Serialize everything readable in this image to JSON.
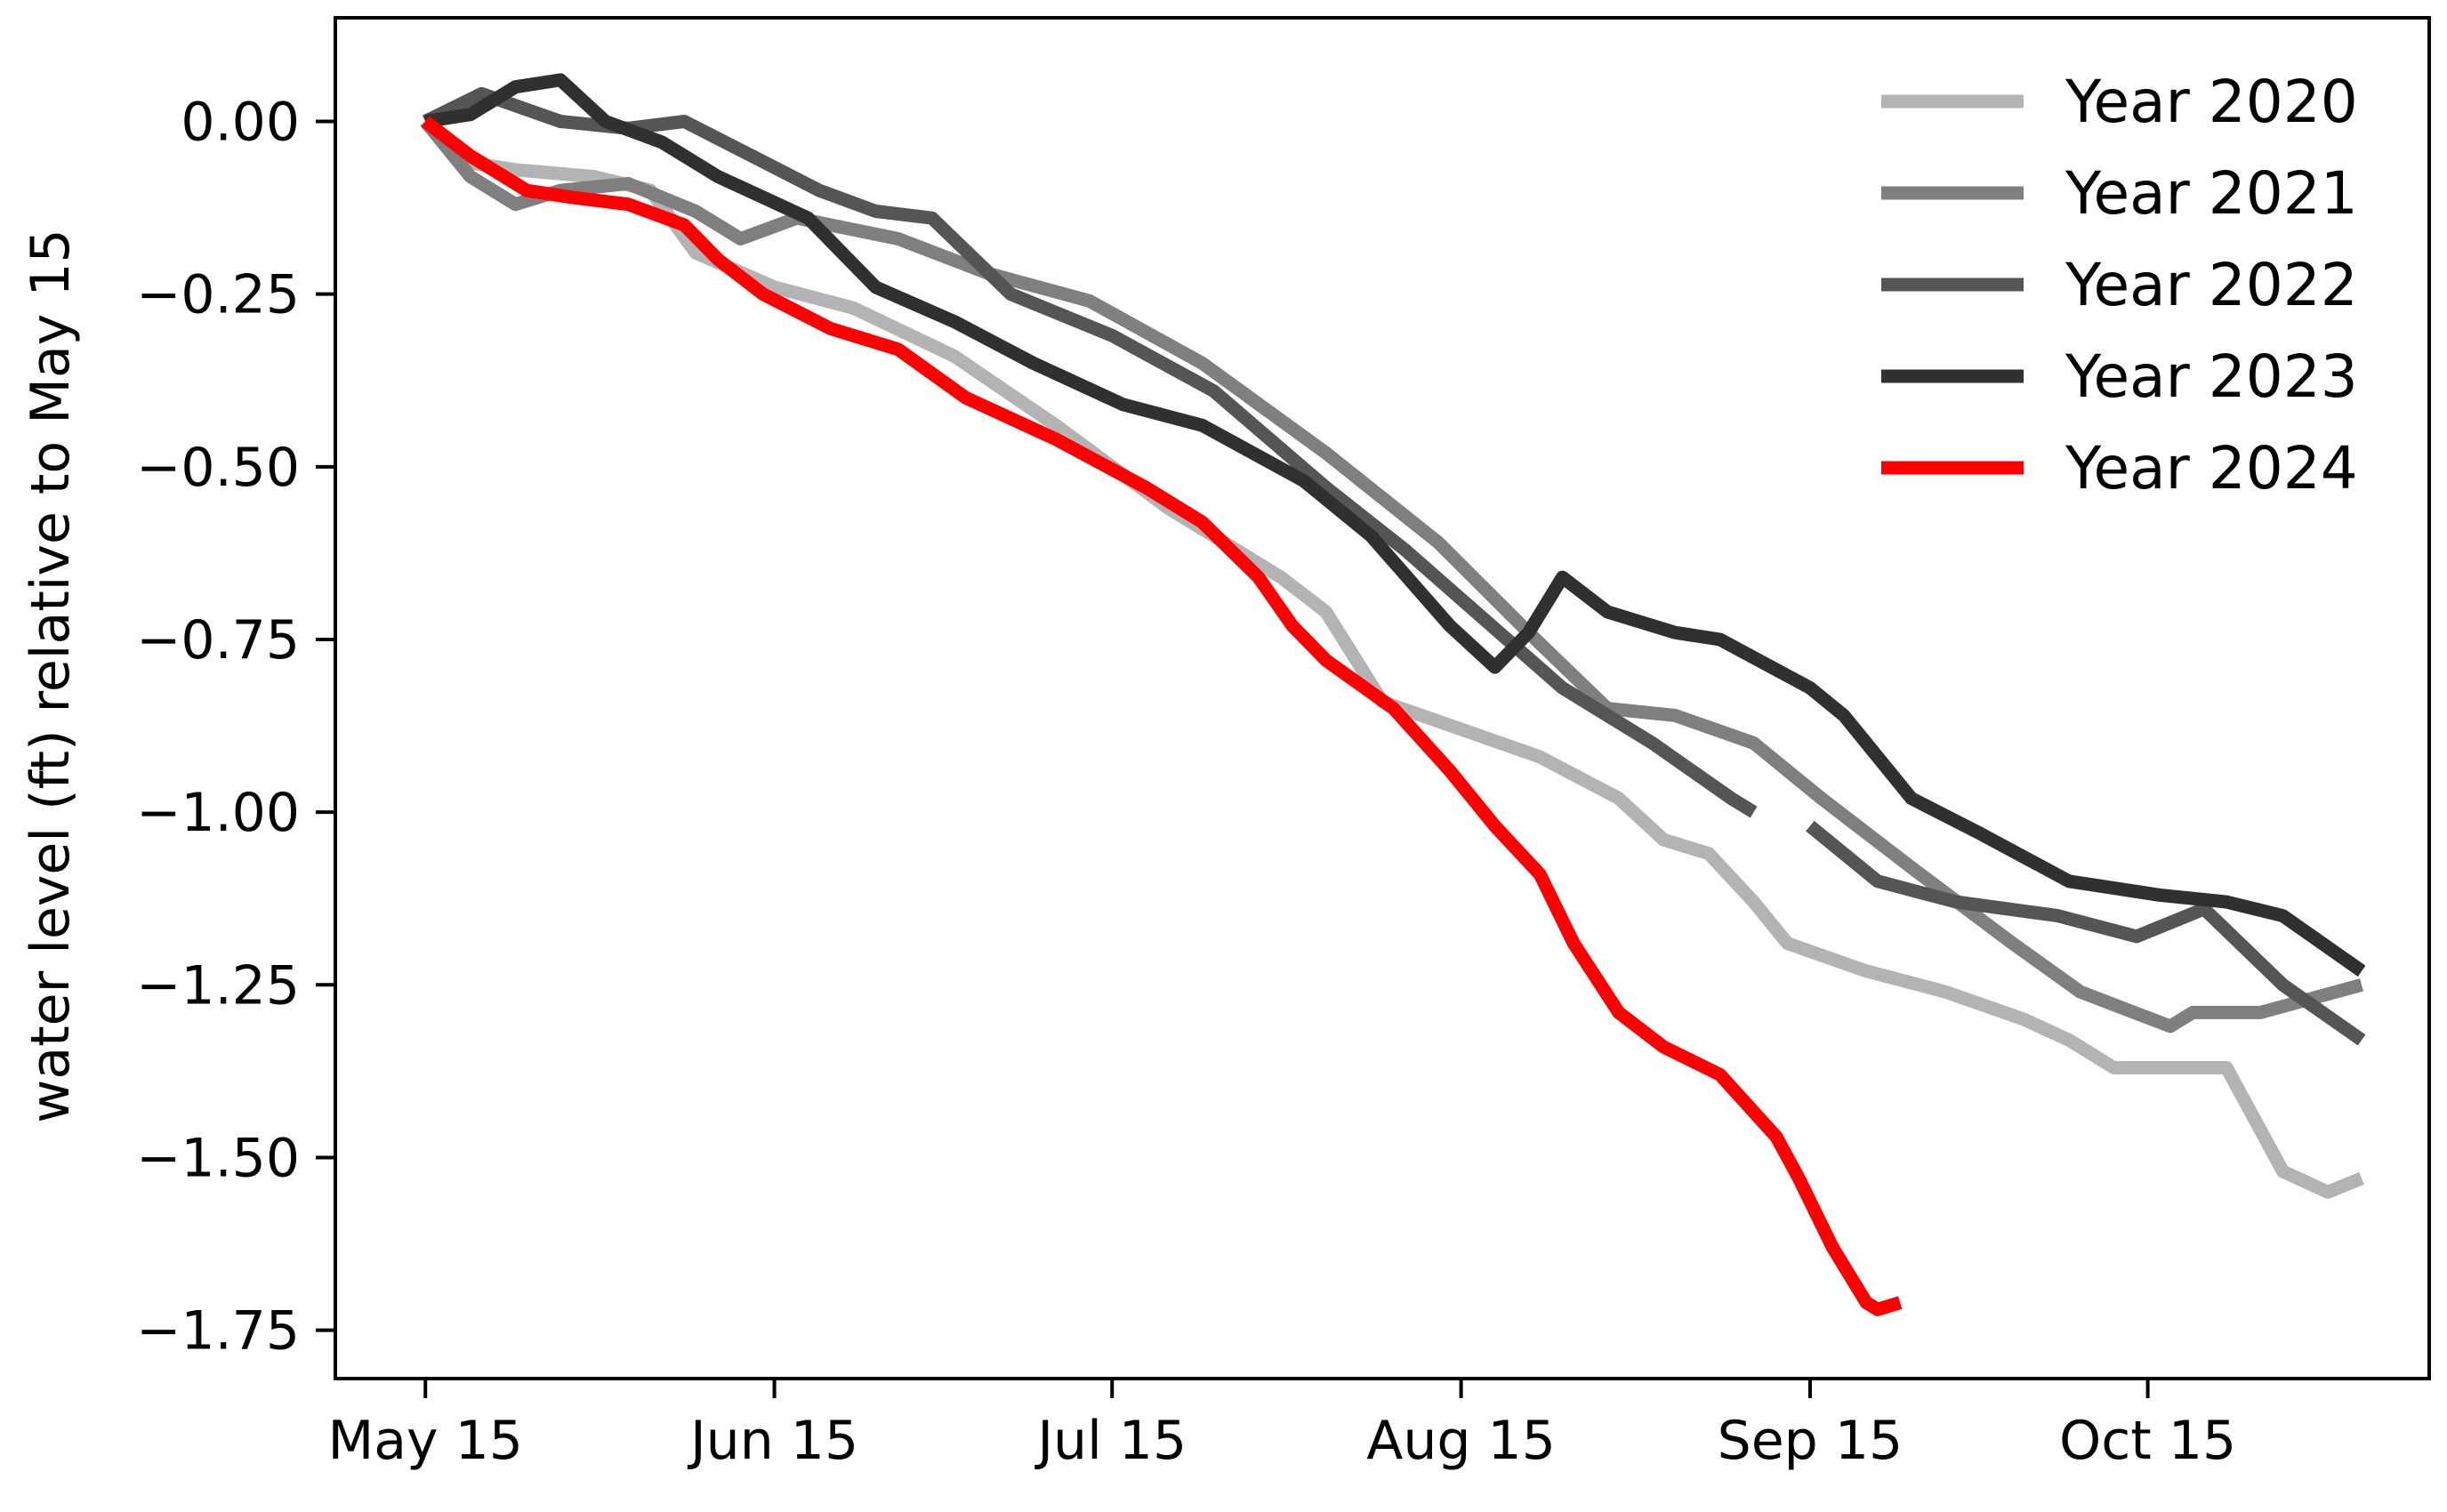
{
  "chart_data": {
    "type": "line",
    "title": "",
    "xlabel": "",
    "ylabel": "water level (ft) relative to May 15",
    "x_unit": "date",
    "xlim": [
      "2024-05-07",
      "2024-11-09"
    ],
    "ylim": [
      -1.82,
      0.15
    ],
    "x_ticks": [
      "2024-05-15",
      "2024-06-15",
      "2024-07-15",
      "2024-08-15",
      "2024-09-15",
      "2024-10-15"
    ],
    "x_tick_labels": [
      "May 15",
      "Jun 15",
      "Jul 15",
      "Aug 15",
      "Sep 15",
      "Oct 15"
    ],
    "y_ticks": [
      0.0,
      -0.25,
      -0.5,
      -0.75,
      -1.0,
      -1.25,
      -1.5,
      -1.75
    ],
    "y_tick_labels": [
      "0.00",
      "−0.25",
      "−0.50",
      "−0.75",
      "−1.00",
      "−1.25",
      "−1.50",
      "−1.75"
    ],
    "grid": false,
    "legend_position": "top-right",
    "series": [
      {
        "name": "Year 2020",
        "color": "#b3b3b3",
        "points": [
          [
            "2024-05-15",
            0
          ],
          [
            "2024-05-19",
            -0.06
          ],
          [
            "2024-05-23",
            -0.07
          ],
          [
            "2024-05-30",
            -0.08
          ],
          [
            "2024-06-04",
            -0.1
          ],
          [
            "2024-06-08",
            -0.19
          ],
          [
            "2024-06-15",
            -0.24
          ],
          [
            "2024-06-22",
            -0.27
          ],
          [
            "2024-07-01",
            -0.34
          ],
          [
            "2024-07-10",
            -0.44
          ],
          [
            "2024-07-20",
            -0.56
          ],
          [
            "2024-07-30",
            -0.66
          ],
          [
            "2024-08-03",
            -0.71
          ],
          [
            "2024-08-08",
            -0.84
          ],
          [
            "2024-08-15",
            -0.88
          ],
          [
            "2024-08-22",
            -0.92
          ],
          [
            "2024-08-29",
            -0.98
          ],
          [
            "2024-09-02",
            -1.04
          ],
          [
            "2024-09-06",
            -1.06
          ],
          [
            "2024-09-10",
            -1.13
          ],
          [
            "2024-09-13",
            -1.19
          ],
          [
            "2024-09-20",
            -1.23
          ],
          [
            "2024-09-27",
            -1.26
          ],
          [
            "2024-10-04",
            -1.3
          ],
          [
            "2024-10-08",
            -1.33
          ],
          [
            "2024-10-12",
            -1.37
          ],
          [
            "2024-10-22",
            -1.37
          ],
          [
            "2024-10-27",
            -1.52
          ],
          [
            "2024-10-31",
            -1.55
          ],
          [
            "2024-11-03",
            -1.53
          ]
        ]
      },
      {
        "name": "Year 2021",
        "color": "#7f7f7f",
        "points": [
          [
            "2024-05-15",
            0
          ],
          [
            "2024-05-19",
            -0.08
          ],
          [
            "2024-05-23",
            -0.12
          ],
          [
            "2024-05-27",
            -0.1
          ],
          [
            "2024-06-02",
            -0.09
          ],
          [
            "2024-06-08",
            -0.13
          ],
          [
            "2024-06-12",
            -0.17
          ],
          [
            "2024-06-17",
            -0.14
          ],
          [
            "2024-06-26",
            -0.17
          ],
          [
            "2024-07-04",
            -0.22
          ],
          [
            "2024-07-13",
            -0.26
          ],
          [
            "2024-07-23",
            -0.35
          ],
          [
            "2024-08-03",
            -0.48
          ],
          [
            "2024-08-13",
            -0.61
          ],
          [
            "2024-08-21",
            -0.74
          ],
          [
            "2024-08-28",
            -0.85
          ],
          [
            "2024-09-03",
            -0.86
          ],
          [
            "2024-09-10",
            -0.9
          ],
          [
            "2024-09-16",
            -0.98
          ],
          [
            "2024-09-24",
            -1.08
          ],
          [
            "2024-10-03",
            -1.19
          ],
          [
            "2024-10-09",
            -1.26
          ],
          [
            "2024-10-17",
            -1.31
          ],
          [
            "2024-10-19",
            -1.29
          ],
          [
            "2024-10-25",
            -1.29
          ],
          [
            "2024-11-03",
            -1.25
          ]
        ]
      },
      {
        "name": "Year 2022",
        "color": "#555555",
        "points": [
          [
            "2024-05-15",
            0
          ],
          [
            "2024-05-20",
            0.04
          ],
          [
            "2024-05-27",
            0.0
          ],
          [
            "2024-06-02",
            -0.01
          ],
          [
            "2024-06-07",
            0.0
          ],
          [
            "2024-06-13",
            -0.05
          ],
          [
            "2024-06-19",
            -0.1
          ],
          [
            "2024-06-24",
            -0.13
          ],
          [
            "2024-06-29",
            -0.14
          ],
          [
            "2024-07-06",
            -0.25
          ],
          [
            "2024-07-15",
            -0.31
          ],
          [
            "2024-07-24",
            -0.39
          ],
          [
            "2024-08-03",
            -0.53
          ],
          [
            "2024-08-10",
            -0.62
          ],
          [
            "2024-08-17",
            -0.72
          ],
          [
            "2024-08-24",
            -0.82
          ],
          [
            "2024-09-01",
            -0.9
          ],
          [
            "2024-09-08",
            -0.98
          ],
          [
            "2024-09-10",
            -1.0
          ],
          null,
          [
            "2024-09-15",
            -1.02
          ],
          [
            "2024-09-21",
            -1.1
          ],
          [
            "2024-09-28",
            -1.13
          ],
          [
            "2024-10-07",
            -1.15
          ],
          [
            "2024-10-14",
            -1.18
          ],
          [
            "2024-10-20",
            -1.14
          ],
          [
            "2024-10-27",
            -1.25
          ],
          [
            "2024-11-03",
            -1.33
          ]
        ]
      },
      {
        "name": "Year 2023",
        "color": "#303030",
        "points": [
          [
            "2024-05-15",
            0
          ],
          [
            "2024-05-19",
            0.01
          ],
          [
            "2024-05-23",
            0.05
          ],
          [
            "2024-05-27",
            0.06
          ],
          [
            "2024-05-31",
            0.0
          ],
          [
            "2024-06-05",
            -0.03
          ],
          [
            "2024-06-10",
            -0.08
          ],
          [
            "2024-06-18",
            -0.14
          ],
          [
            "2024-06-24",
            -0.24
          ],
          [
            "2024-07-01",
            -0.29
          ],
          [
            "2024-07-08",
            -0.35
          ],
          [
            "2024-07-16",
            -0.41
          ],
          [
            "2024-07-23",
            -0.44
          ],
          [
            "2024-08-01",
            -0.52
          ],
          [
            "2024-08-07",
            -0.6
          ],
          [
            "2024-08-14",
            -0.73
          ],
          [
            "2024-08-18",
            -0.79
          ],
          [
            "2024-08-21",
            -0.74
          ],
          [
            "2024-08-24",
            -0.66
          ],
          [
            "2024-08-28",
            -0.71
          ],
          [
            "2024-09-03",
            -0.74
          ],
          [
            "2024-09-07",
            -0.75
          ],
          [
            "2024-09-15",
            -0.82
          ],
          [
            "2024-09-18",
            -0.86
          ],
          [
            "2024-09-24",
            -0.98
          ],
          [
            "2024-09-30",
            -1.03
          ],
          [
            "2024-10-08",
            -1.1
          ],
          [
            "2024-10-16",
            -1.12
          ],
          [
            "2024-10-22",
            -1.13
          ],
          [
            "2024-10-27",
            -1.15
          ],
          [
            "2024-11-03",
            -1.23
          ]
        ]
      },
      {
        "name": "Year 2024",
        "color": "#ff0000",
        "points": [
          [
            "2024-05-15",
            0
          ],
          [
            "2024-05-19",
            -0.05
          ],
          [
            "2024-05-24",
            -0.1
          ],
          [
            "2024-05-28",
            -0.11
          ],
          [
            "2024-06-02",
            -0.12
          ],
          [
            "2024-06-07",
            -0.15
          ],
          [
            "2024-06-10",
            -0.2
          ],
          [
            "2024-06-14",
            -0.25
          ],
          [
            "2024-06-20",
            -0.3
          ],
          [
            "2024-06-26",
            -0.33
          ],
          [
            "2024-07-02",
            -0.4
          ],
          [
            "2024-07-10",
            -0.46
          ],
          [
            "2024-07-18",
            -0.53
          ],
          [
            "2024-07-23",
            -0.58
          ],
          [
            "2024-07-28",
            -0.66
          ],
          [
            "2024-07-31",
            -0.73
          ],
          [
            "2024-08-03",
            -0.78
          ],
          [
            "2024-08-09",
            -0.85
          ],
          [
            "2024-08-14",
            -0.94
          ],
          [
            "2024-08-18",
            -1.02
          ],
          [
            "2024-08-22",
            -1.09
          ],
          [
            "2024-08-25",
            -1.19
          ],
          [
            "2024-08-29",
            -1.29
          ],
          [
            "2024-09-02",
            -1.34
          ],
          [
            "2024-09-07",
            -1.38
          ],
          [
            "2024-09-12",
            -1.47
          ],
          [
            "2024-09-14",
            -1.53
          ],
          [
            "2024-09-17",
            -1.63
          ],
          [
            "2024-09-20",
            -1.71
          ],
          [
            "2024-09-21",
            -1.72
          ],
          [
            "2024-09-23",
            -1.71
          ]
        ]
      }
    ]
  }
}
